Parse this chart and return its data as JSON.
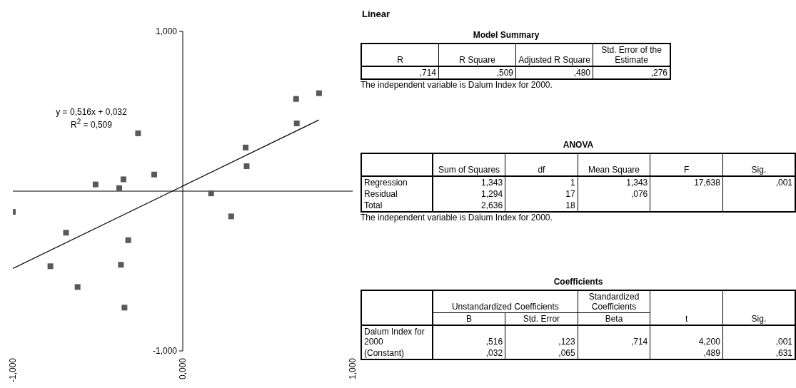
{
  "chart_data": [
    {
      "type": "scatter",
      "marker": "square",
      "xlim": [
        -1,
        1
      ],
      "ylim": [
        -1,
        1
      ],
      "xticks": [
        {
          "value": -1,
          "label": "-1,000"
        },
        {
          "value": 0,
          "label": "0,000"
        },
        {
          "value": 1,
          "label": "1,000"
        }
      ],
      "yticks": [
        {
          "value": -1,
          "label": "-1,000"
        },
        {
          "value": 1,
          "label": "1,000"
        }
      ],
      "annotations": [
        "y = 0,516x + 0,032",
        "R$^{2}$ = 0,509"
      ],
      "series": [
        {
          "color": "#595959",
          "x": [
            -1.0,
            -0.687,
            -0.779,
            -0.619,
            -0.513,
            -0.374,
            -0.349,
            -0.321,
            -0.364,
            -0.343,
            -0.263,
            -0.168,
            0.167,
            0.285,
            0.37,
            0.376,
            0.671,
            0.667,
            0.802
          ],
          "values": [
            -0.13,
            -0.26,
            -0.47,
            -0.6,
            0.042,
            0.019,
            0.074,
            -0.307,
            -0.461,
            -0.729,
            0.362,
            0.104,
            -0.014,
            -0.158,
            0.273,
            0.156,
            0.424,
            0.577,
            0.613
          ]
        },
        {
          "type": "line",
          "color": "#000000",
          "marker": "none",
          "line_style": "solid",
          "x": [
            -1,
            0.802
          ],
          "values": [
            -0.484,
            0.446
          ]
        }
      ]
    },
    {
      "type": "other",
      "title": "Linear",
      "annotations": [
        "Model Summary",
        "R",
        "R Square",
        "Adjusted R Square",
        "Std. Error of the Estimate",
        ",714",
        ",509",
        ",480",
        ",276",
        "The independent variable is Dalum Index for 2000.",
        "ANOVA",
        "Sum of Squares",
        "df",
        "Mean Square",
        "F",
        "Sig.",
        "Regression",
        "1,343",
        "1",
        "1,343",
        "17,638",
        ",001",
        "Residual",
        "1,294",
        "17",
        ",076",
        "Total",
        "2,636",
        "18",
        "The independent variable is Dalum Index for 2000.",
        "Coefficients",
        "Unstandardized Coefficients",
        "Standardized Coefficients",
        "t",
        "Sig.",
        "B",
        "Std. Error",
        "Beta",
        "Dalum Index for 2000",
        ",516",
        ",123",
        ",714",
        "4,200",
        ",001",
        "(Constant)",
        ",032",
        ",065",
        ",489",
        ",631"
      ]
    }
  ]
}
